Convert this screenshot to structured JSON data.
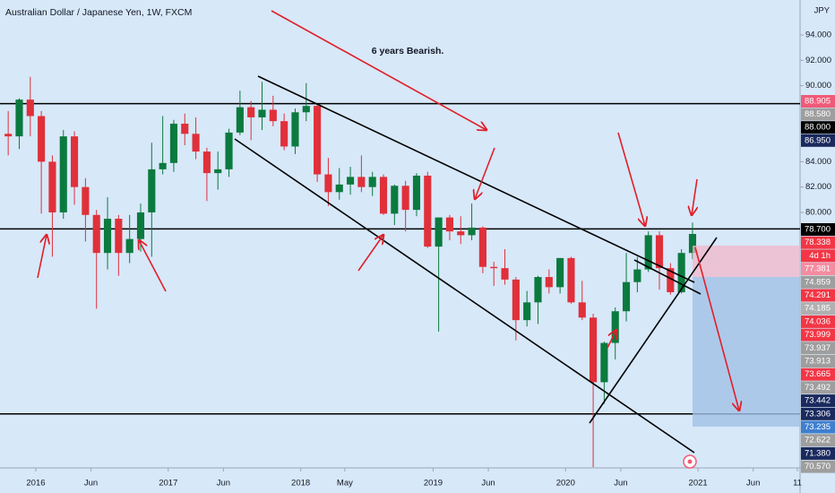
{
  "chart_data": {
    "type": "candlestick",
    "title": "Australian Dollar / Japanese Yen, 1W, FXCM",
    "currency": "JPY",
    "annotation": "6 years Bearish.",
    "x": [
      "2015-10",
      "2015-11",
      "2015-12",
      "2016-01",
      "2016-02",
      "2016-03",
      "2016-04",
      "2016-05",
      "2016-06",
      "2016-07",
      "2016-08",
      "2016-09",
      "2016-10",
      "2016-11",
      "2016-12",
      "2017-01",
      "2017-02",
      "2017-03",
      "2017-04",
      "2017-05",
      "2017-06",
      "2017-07",
      "2017-08",
      "2017-09",
      "2017-10",
      "2017-11",
      "2017-12",
      "2018-01",
      "2018-02",
      "2018-03",
      "2018-04",
      "2018-05",
      "2018-06",
      "2018-07",
      "2018-08",
      "2018-09",
      "2018-10",
      "2018-11",
      "2018-12",
      "2019-01",
      "2019-02",
      "2019-03",
      "2019-04",
      "2019-05",
      "2019-06",
      "2019-07",
      "2019-08",
      "2019-09",
      "2019-10",
      "2019-11",
      "2019-12",
      "2020-01",
      "2020-02",
      "2020-03",
      "2020-04",
      "2020-05",
      "2020-06",
      "2020-07",
      "2020-08",
      "2020-09",
      "2020-10",
      "2020-11",
      "2020-12"
    ],
    "open": [
      86.2,
      86.0,
      88.9,
      87.6,
      84.0,
      80.0,
      86.0,
      82.0,
      79.8,
      76.8,
      79.5,
      76.8,
      77.9,
      80.0,
      83.4,
      83.9,
      87.0,
      86.2,
      84.8,
      83.1,
      83.4,
      86.3,
      88.3,
      87.5,
      88.1,
      87.2,
      85.2,
      87.9,
      88.4,
      83.0,
      81.6,
      82.2,
      82.8,
      82.0,
      82.8,
      79.9,
      82.1,
      80.2,
      82.9,
      77.3,
      79.6,
      78.5,
      78.2,
      78.8,
      75.7,
      75.6,
      74.7,
      71.5,
      72.9,
      74.9,
      74.1,
      76.4,
      72.9,
      71.7,
      66.6,
      69.7,
      72.2,
      74.5,
      75.5,
      78.2,
      75.6,
      73.7,
      76.8
    ],
    "high": [
      88.0,
      89.0,
      90.7,
      88.0,
      84.5,
      86.5,
      86.4,
      82.7,
      80.2,
      81.2,
      79.8,
      79.8,
      80.7,
      85.5,
      87.6,
      87.3,
      87.8,
      87.5,
      85.1,
      84.8,
      86.6,
      89.6,
      88.8,
      90.3,
      89.2,
      87.8,
      88.2,
      90.2,
      88.5,
      84.3,
      83.5,
      83.6,
      84.5,
      83.2,
      83.0,
      82.2,
      82.5,
      83.1,
      83.2,
      79.6,
      79.8,
      79.7,
      80.7,
      78.9,
      76.1,
      77.1,
      74.9,
      73.8,
      75.0,
      75.5,
      76.4,
      76.5,
      74.6,
      72.0,
      69.8,
      72.5,
      76.8,
      76.5,
      78.5,
      78.5,
      76.0,
      77.1,
      79.2
    ],
    "low": [
      84.5,
      85.0,
      86.0,
      79.9,
      76.5,
      79.5,
      80.6,
      77.7,
      72.4,
      75.5,
      75.0,
      76.0,
      76.9,
      76.5,
      83.0,
      83.2,
      85.3,
      84.2,
      80.9,
      81.8,
      82.8,
      86.1,
      85.7,
      86.5,
      86.8,
      84.9,
      84.6,
      87.2,
      82.4,
      80.5,
      81.0,
      81.4,
      81.6,
      81.3,
      79.8,
      79.0,
      78.5,
      79.7,
      77.2,
      70.6,
      77.8,
      77.5,
      77.8,
      75.2,
      74.2,
      74.3,
      69.9,
      71.0,
      71.2,
      73.6,
      73.6,
      72.8,
      71.5,
      59.9,
      64.9,
      68.4,
      71.4,
      73.7,
      75.3,
      73.9,
      73.5,
      73.6,
      76.3
    ],
    "close": [
      86.0,
      88.9,
      87.6,
      84.0,
      80.0,
      86.0,
      82.0,
      79.8,
      76.8,
      79.5,
      76.8,
      77.9,
      80.0,
      83.4,
      83.9,
      87.0,
      86.2,
      84.8,
      83.1,
      83.4,
      86.3,
      88.3,
      87.5,
      88.1,
      87.2,
      85.2,
      87.9,
      88.4,
      83.0,
      81.6,
      82.2,
      82.8,
      82.0,
      82.8,
      79.9,
      82.1,
      80.2,
      82.9,
      77.3,
      79.6,
      78.5,
      78.2,
      78.8,
      75.7,
      75.6,
      74.7,
      71.5,
      72.9,
      74.9,
      74.1,
      76.4,
      72.9,
      71.7,
      66.6,
      69.7,
      72.2,
      74.5,
      75.5,
      78.2,
      75.6,
      73.7,
      76.8,
      78.3
    ],
    "up_color": "#0b7a3e",
    "down_color": "#e0303a",
    "xlim": [
      "2015-10",
      "2021-10"
    ],
    "xticks": [
      {
        "value": "2016-01",
        "label": "2016"
      },
      {
        "value": "2016-06",
        "label": "Jun"
      },
      {
        "value": "2017-01",
        "label": "2017"
      },
      {
        "value": "2017-06",
        "label": "Jun"
      },
      {
        "value": "2018-01",
        "label": "2018"
      },
      {
        "value": "2018-05",
        "label": "May"
      },
      {
        "value": "2019-01",
        "label": "2019"
      },
      {
        "value": "2019-06",
        "label": "Jun"
      },
      {
        "value": "2020-01",
        "label": "2020"
      },
      {
        "value": "2020-06",
        "label": "Jun"
      },
      {
        "value": "2021-01",
        "label": "2021"
      },
      {
        "value": "2021-06",
        "label": "Jun"
      },
      {
        "value": "2021-10",
        "label": "11"
      }
    ],
    "ylim": [
      59.98,
      96.76
    ],
    "yticks": [
      {
        "value": 94,
        "label": "94.000"
      },
      {
        "value": 92,
        "label": "92.000"
      },
      {
        "value": 90,
        "label": "90.000"
      },
      {
        "value": 84,
        "label": "84.000"
      },
      {
        "value": 82,
        "label": "82.000"
      },
      {
        "value": 80,
        "label": "80.000"
      }
    ],
    "levels": [
      88.58,
      78.7,
      64.1
    ],
    "level_color": "#000000",
    "price_tags": [
      {
        "label": "88.905",
        "color": "#f05a78"
      },
      {
        "label": "88.580",
        "color": "#9e9e9e"
      },
      {
        "label": "88.000",
        "color": "#000000"
      },
      {
        "label": "86.950",
        "color": "#1a2a5e"
      },
      {
        "label": "78.700",
        "color": "#000000"
      },
      {
        "label": "78.338",
        "color": "#f23645"
      },
      {
        "label": "4d 1h",
        "color": "#f23645"
      },
      {
        "label": "77.381",
        "color": "#f48ca0"
      },
      {
        "label": "74.859",
        "color": "#9e9e9e"
      },
      {
        "label": "74.291",
        "color": "#f23645"
      },
      {
        "label": "74.185",
        "color": "#b0b0b0"
      },
      {
        "label": "74.036",
        "color": "#f23645"
      },
      {
        "label": "73.999",
        "color": "#f23645"
      },
      {
        "label": "73.937",
        "color": "#9e9e9e"
      },
      {
        "label": "73.913",
        "color": "#9e9e9e"
      },
      {
        "label": "73.665",
        "color": "#f23645"
      },
      {
        "label": "73.492",
        "color": "#9e9e9e"
      },
      {
        "label": "73.442",
        "color": "#1a2a5e"
      },
      {
        "label": "73.306",
        "color": "#1a2a5e"
      },
      {
        "label": "73.235",
        "color": "#3f7fd0"
      },
      {
        "label": "72.622",
        "color": "#9e9e9e"
      },
      {
        "label": "71.380",
        "color": "#1a2a5e"
      },
      {
        "label": "70.570",
        "color": "#9e9e9e"
      }
    ]
  }
}
